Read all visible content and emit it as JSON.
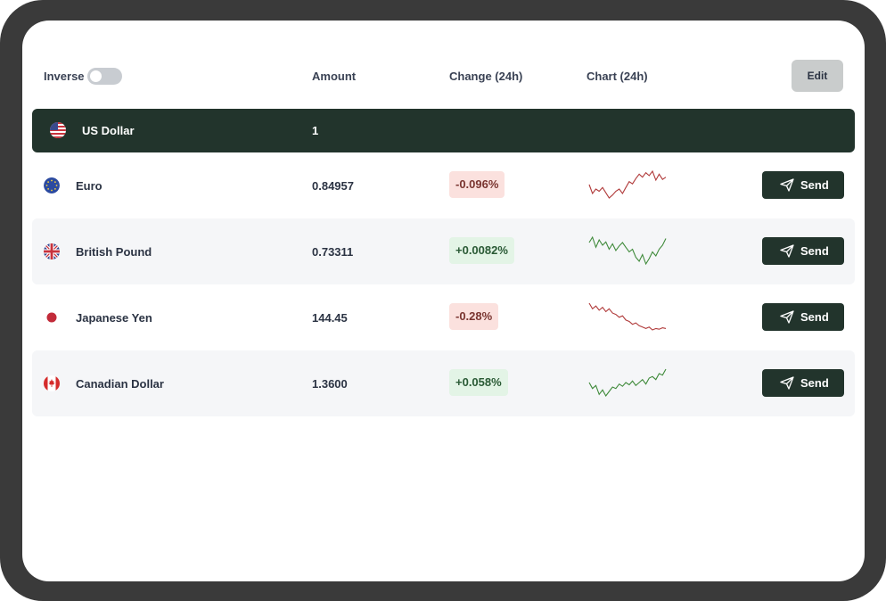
{
  "header": {
    "inverse_label": "Inverse",
    "amount_label": "Amount",
    "change_label": "Change (24h)",
    "chart_label": "Chart (24h)",
    "edit_label": "Edit",
    "inverse_on": false
  },
  "base": {
    "name": "US Dollar",
    "amount": "1",
    "flag": "us-flag-icon"
  },
  "rows": [
    {
      "name": "Euro",
      "amount": "0.84957",
      "change": "-0.096%",
      "direction": "down",
      "flag": "eu-flag-icon",
      "send_label": "Send",
      "chart": [
        56,
        44,
        50,
        47,
        52,
        45,
        38,
        42,
        47,
        50,
        44,
        52,
        60,
        57,
        64,
        70,
        66,
        72,
        68,
        74,
        62,
        70,
        63,
        66
      ]
    },
    {
      "name": "British Pound",
      "amount": "0.73311",
      "change": "+0.0082%",
      "direction": "up",
      "flag": "uk-flag-icon",
      "send_label": "Send",
      "chart": [
        62,
        70,
        55,
        66,
        58,
        63,
        52,
        60,
        50,
        57,
        62,
        55,
        48,
        52,
        40,
        34,
        44,
        30,
        38,
        48,
        42,
        52,
        58,
        68
      ]
    },
    {
      "name": "Japanese Yen",
      "amount": "144.45",
      "change": "-0.28%",
      "direction": "down",
      "flag": "jp-flag-icon",
      "send_label": "Send",
      "chart": [
        66,
        58,
        62,
        56,
        60,
        54,
        58,
        52,
        50,
        46,
        48,
        42,
        40,
        36,
        38,
        34,
        32,
        30,
        32,
        28,
        30,
        29,
        31,
        30
      ]
    },
    {
      "name": "Canadian Dollar",
      "amount": "1.3600",
      "change": "+0.058%",
      "direction": "up",
      "flag": "ca-flag-icon",
      "send_label": "Send",
      "chart": [
        40,
        32,
        36,
        24,
        30,
        22,
        28,
        34,
        32,
        38,
        35,
        40,
        37,
        42,
        36,
        40,
        44,
        38,
        46,
        48,
        44,
        52,
        50,
        58
      ]
    }
  ],
  "colors": {
    "dark": "#22342c",
    "neg_line": "#b03a3a",
    "pos_line": "#3f8a3a",
    "neg_bg": "#fbe1de",
    "pos_bg": "#e3f4e6"
  },
  "icons": {
    "send": "paper-plane-icon"
  }
}
